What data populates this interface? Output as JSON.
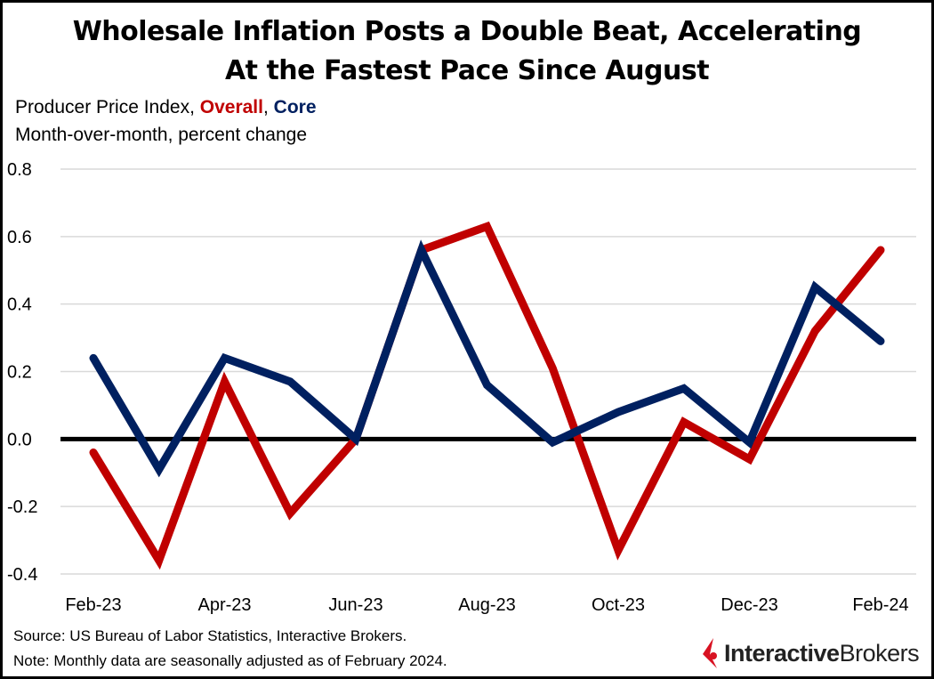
{
  "title_line1": "Wholesale Inflation Posts a Double Beat, Accelerating",
  "title_line2": "At the Fastest Pace Since August",
  "subtitle": {
    "prefix": "Producer Price Index, ",
    "overall": "Overall",
    "sep": ", ",
    "core": "Core",
    "line2": "Month-over-month,  percent change"
  },
  "footer": {
    "source": "Source: US Bureau of Labor Statistics, Interactive Brokers.",
    "note": "Note: Monthly data are seasonally adjusted as of February 2024."
  },
  "logo": {
    "bold": "Interactive",
    "regular": "Brokers"
  },
  "colors": {
    "overall": "#c00000",
    "core": "#002060",
    "zero_line": "#000000",
    "grid": "#d9d9d9"
  },
  "chart_data": {
    "type": "line",
    "x": [
      "Feb-23",
      "Mar-23",
      "Apr-23",
      "May-23",
      "Jun-23",
      "Jul-23",
      "Aug-23",
      "Sep-23",
      "Oct-23",
      "Nov-23",
      "Dec-23",
      "Jan-24",
      "Feb-24"
    ],
    "x_tick_labels": [
      "Feb-23",
      "Apr-23",
      "Jun-23",
      "Aug-23",
      "Oct-23",
      "Dec-23",
      "Feb-24"
    ],
    "y_ticks": [
      "0.8",
      "0.6",
      "0.4",
      "0.2",
      "0.0",
      "-0.2",
      "-0.4"
    ],
    "ylim": [
      -0.4,
      0.8
    ],
    "grid": true,
    "series": [
      {
        "name": "Overall",
        "color": "#c00000",
        "values": [
          -0.04,
          -0.36,
          0.17,
          -0.22,
          0.0,
          0.56,
          0.63,
          0.21,
          -0.33,
          0.05,
          -0.06,
          0.32,
          0.56
        ]
      },
      {
        "name": "Core",
        "color": "#002060",
        "values": [
          0.24,
          -0.09,
          0.24,
          0.17,
          0.0,
          0.56,
          0.16,
          -0.01,
          0.08,
          0.15,
          -0.01,
          0.45,
          0.29
        ]
      }
    ]
  }
}
